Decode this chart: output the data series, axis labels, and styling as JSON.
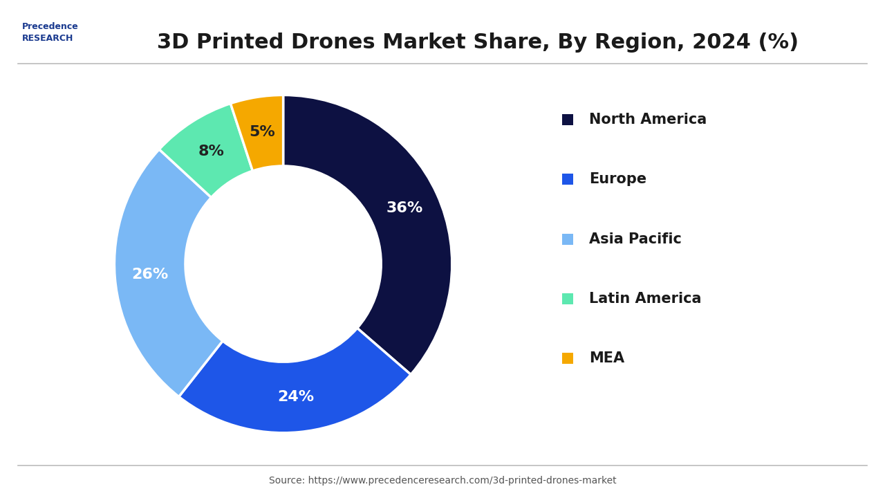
{
  "title": "3D Printed Drones Market Share, By Region, 2024 (%)",
  "segments": [
    {
      "label": "North America",
      "value": 36,
      "color": "#0d1142"
    },
    {
      "label": "Europe",
      "value": 24,
      "color": "#1e56e8"
    },
    {
      "label": "Asia Pacific",
      "value": 26,
      "color": "#7ab8f5"
    },
    {
      "label": "Latin America",
      "value": 8,
      "color": "#5de8b0"
    },
    {
      "label": "MEA",
      "value": 5,
      "color": "#f5a800"
    }
  ],
  "label_colors": {
    "North America": "#ffffff",
    "Europe": "#ffffff",
    "Asia Pacific": "#ffffff",
    "Latin America": "#222222",
    "MEA": "#222222"
  },
  "background_color": "#ffffff",
  "source_text": "Source: https://www.precedenceresearch.com/3d-printed-drones-market",
  "source_fontsize": 10,
  "title_fontsize": 22,
  "legend_fontsize": 15,
  "label_fontsize": 16,
  "donut_width": 0.42,
  "start_angle": 90
}
